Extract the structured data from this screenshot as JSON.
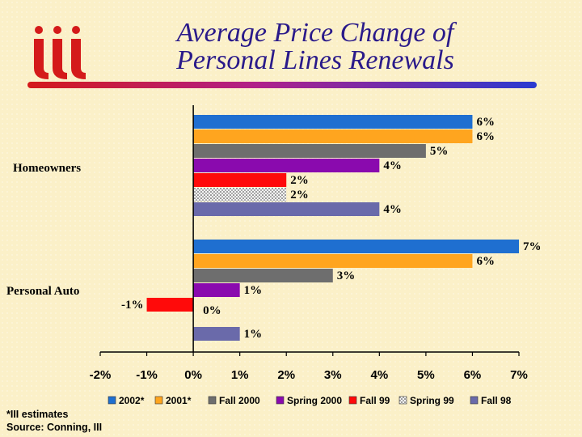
{
  "header": {
    "title_line1": "Average Price Change of",
    "title_line2": "Personal Lines Renewals",
    "logo_text": "iii",
    "logo_color": "#d41a1a",
    "title_color": "#2a1a8a"
  },
  "footnote": {
    "line1": "*III estimates",
    "line2": "Source:  Conning, III"
  },
  "chart_data": {
    "type": "bar",
    "orientation": "horizontal",
    "title": "Average Price Change of Personal Lines Renewals",
    "xlabel": "",
    "ylabel": "",
    "xlim": [
      -2,
      7
    ],
    "x_ticks": [
      "-2%",
      "-1%",
      "0%",
      "1%",
      "2%",
      "3%",
      "4%",
      "5%",
      "6%",
      "7%"
    ],
    "grid": false,
    "legend_position": "bottom",
    "categories": [
      "Homeowners",
      "Personal Auto"
    ],
    "series": [
      {
        "name": "2002*",
        "color": "#1f6fd0",
        "values": [
          6,
          7
        ],
        "labels": [
          "6%",
          "7%"
        ]
      },
      {
        "name": "2001*",
        "color": "#ffa51f",
        "values": [
          6,
          6
        ],
        "labels": [
          "6%",
          "6%"
        ]
      },
      {
        "name": "Fall 2000",
        "color": "#6e6e6e",
        "values": [
          5,
          3
        ],
        "labels": [
          "5%",
          "3%"
        ]
      },
      {
        "name": "Spring 2000",
        "color": "#8a0aae",
        "values": [
          4,
          1
        ],
        "labels": [
          "4%",
          "1%"
        ]
      },
      {
        "name": "Fall 99",
        "color": "#ff0a0a",
        "values": [
          2,
          -1
        ],
        "labels": [
          "2%",
          "-1%"
        ]
      },
      {
        "name": "Spring 99",
        "color": "#eeeeee",
        "pattern": "dotted",
        "values": [
          2,
          0
        ],
        "labels": [
          "2%",
          "0%"
        ]
      },
      {
        "name": "Fall 98",
        "color": "#6a6aaa",
        "values": [
          4,
          1
        ],
        "labels": [
          "4%",
          "1%"
        ]
      }
    ]
  }
}
